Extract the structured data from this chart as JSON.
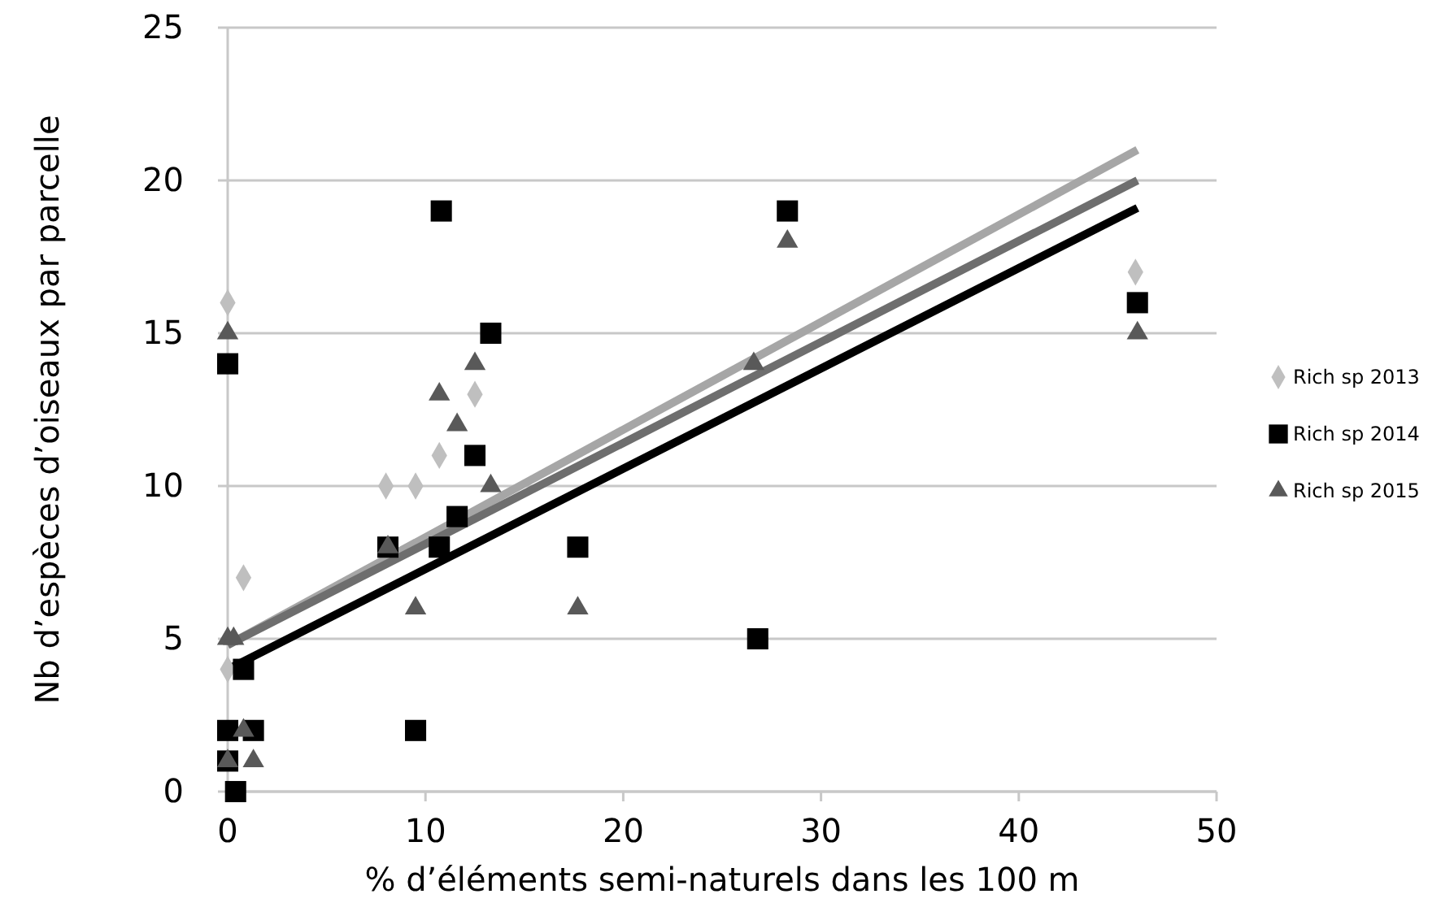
{
  "chart_data": {
    "type": "scatter",
    "xlabel": "% d’éléments semi-naturels dans les 100 m",
    "ylabel": "Nb d’espèces d’oiseaux par parcelle",
    "xlim": [
      0,
      50
    ],
    "xticks": [
      0,
      10,
      20,
      30,
      40,
      50
    ],
    "ylim": [
      0,
      25
    ],
    "yticks": [
      0,
      5,
      10,
      15,
      20,
      25
    ],
    "grid": "y",
    "legend": "right",
    "series": [
      {
        "name": "Rich sp 2013",
        "color": "#bfbfbf",
        "marker": "diamond",
        "x": [
          0,
          12.5,
          10.7,
          8,
          9.5,
          0.8,
          0,
          45.9
        ],
        "values": [
          16,
          13,
          11,
          10,
          10,
          7,
          4,
          17
        ]
      },
      {
        "name": "Rich sp 2014",
        "color": "#000000",
        "marker": "square",
        "x": [
          0,
          10.8,
          13.3,
          12.5,
          11.6,
          8.1,
          10.7,
          17.7,
          0.8,
          9.5,
          0,
          1.3,
          0,
          0.4,
          28.3,
          26.8,
          46
        ],
        "values": [
          14,
          19,
          15,
          11,
          9,
          8,
          8,
          8,
          4,
          2,
          2,
          2,
          1,
          0,
          19,
          5,
          16
        ]
      },
      {
        "name": "Rich sp 2015",
        "color": "#595959",
        "marker": "triangle",
        "x": [
          0,
          12.5,
          10.7,
          11.6,
          13.3,
          8.1,
          9.5,
          17.7,
          0,
          0.3,
          0.8,
          0,
          1.3,
          28.3,
          26.6,
          46
        ],
        "values": [
          15,
          14,
          13,
          12,
          10,
          8,
          6,
          6,
          5,
          5,
          2,
          1,
          1,
          18,
          14,
          15
        ]
      },
      {
        "type": "line",
        "color": "#a6a6a6",
        "x": [
          0,
          46
        ],
        "values": [
          4.8,
          21
        ]
      },
      {
        "type": "line",
        "color": "#6e6e6e",
        "x": [
          0,
          46
        ],
        "values": [
          4.8,
          20
        ]
      },
      {
        "type": "line",
        "color": "#000000",
        "x": [
          0,
          46
        ],
        "values": [
          4,
          19.1
        ]
      }
    ]
  }
}
